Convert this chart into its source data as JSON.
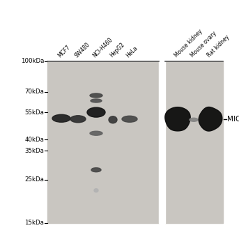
{
  "bg_color": "#c8c5c0",
  "panel_bg": "#c8c5c0",
  "fig_bg": "#ffffff",
  "lane_labels": [
    "MCF7",
    "SW480",
    "NCI-H460",
    "HepG2",
    "HeLa",
    "Mouse kidney",
    "Mouse ovary",
    "Rat kidney"
  ],
  "mw_labels": [
    "100kDa",
    "70kDa",
    "55kDa",
    "40kDa",
    "35kDa",
    "25kDa",
    "15kDa"
  ],
  "mw_positions": [
    100,
    70,
    55,
    40,
    35,
    25,
    15
  ],
  "annotation": "MICA",
  "annotation_mw": 50
}
